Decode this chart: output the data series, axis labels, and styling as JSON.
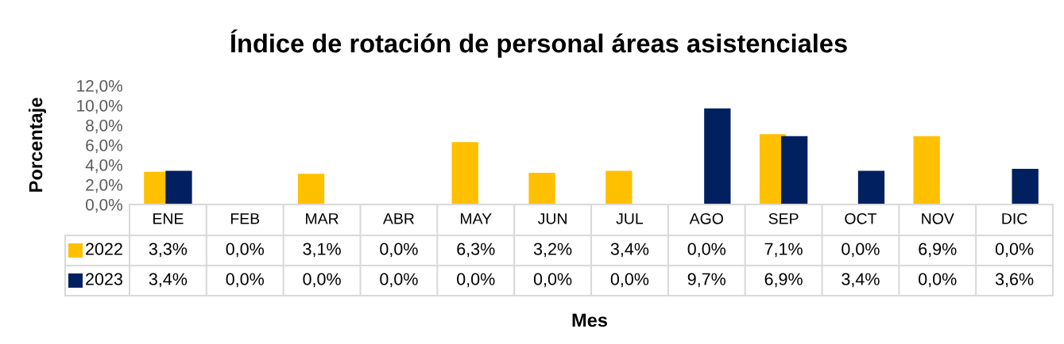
{
  "chart_data": {
    "type": "bar",
    "title": "Índice de rotación de personal áreas asistenciales",
    "xlabel": "Mes",
    "ylabel": "Porcentaje",
    "categories": [
      "ENE",
      "FEB",
      "MAR",
      "ABR",
      "MAY",
      "JUN",
      "JUL",
      "AGO",
      "SEP",
      "OCT",
      "NOV",
      "DIC"
    ],
    "series": [
      {
        "name": "2022",
        "color": "#ffc000",
        "values": [
          3.3,
          0.0,
          3.1,
          0.0,
          6.3,
          3.2,
          3.4,
          0.0,
          7.1,
          0.0,
          6.9,
          0.0
        ],
        "value_labels": [
          "3,3%",
          "0,0%",
          "3,1%",
          "0,0%",
          "6,3%",
          "3,2%",
          "3,4%",
          "0,0%",
          "7,1%",
          "0,0%",
          "6,9%",
          "0,0%"
        ]
      },
      {
        "name": "2023",
        "color": "#002060",
        "values": [
          3.4,
          0.0,
          0.0,
          0.0,
          0.0,
          0.0,
          0.0,
          9.7,
          6.9,
          3.4,
          0.0,
          3.6
        ],
        "value_labels": [
          "3,4%",
          "0,0%",
          "0,0%",
          "0,0%",
          "0,0%",
          "0,0%",
          "0,0%",
          "9,7%",
          "6,9%",
          "3,4%",
          "0,0%",
          "3,6%"
        ]
      }
    ],
    "ylim": [
      0,
      12
    ],
    "yticks": [
      {
        "value": 0,
        "label": "0,0%"
      },
      {
        "value": 2,
        "label": "2,0%"
      },
      {
        "value": 4,
        "label": "4,0%"
      },
      {
        "value": 6,
        "label": "6,0%"
      },
      {
        "value": 8,
        "label": "8,0%"
      },
      {
        "value": 10,
        "label": "10,0%"
      },
      {
        "value": 12,
        "label": "12,0%"
      }
    ],
    "legend": "bottom"
  }
}
